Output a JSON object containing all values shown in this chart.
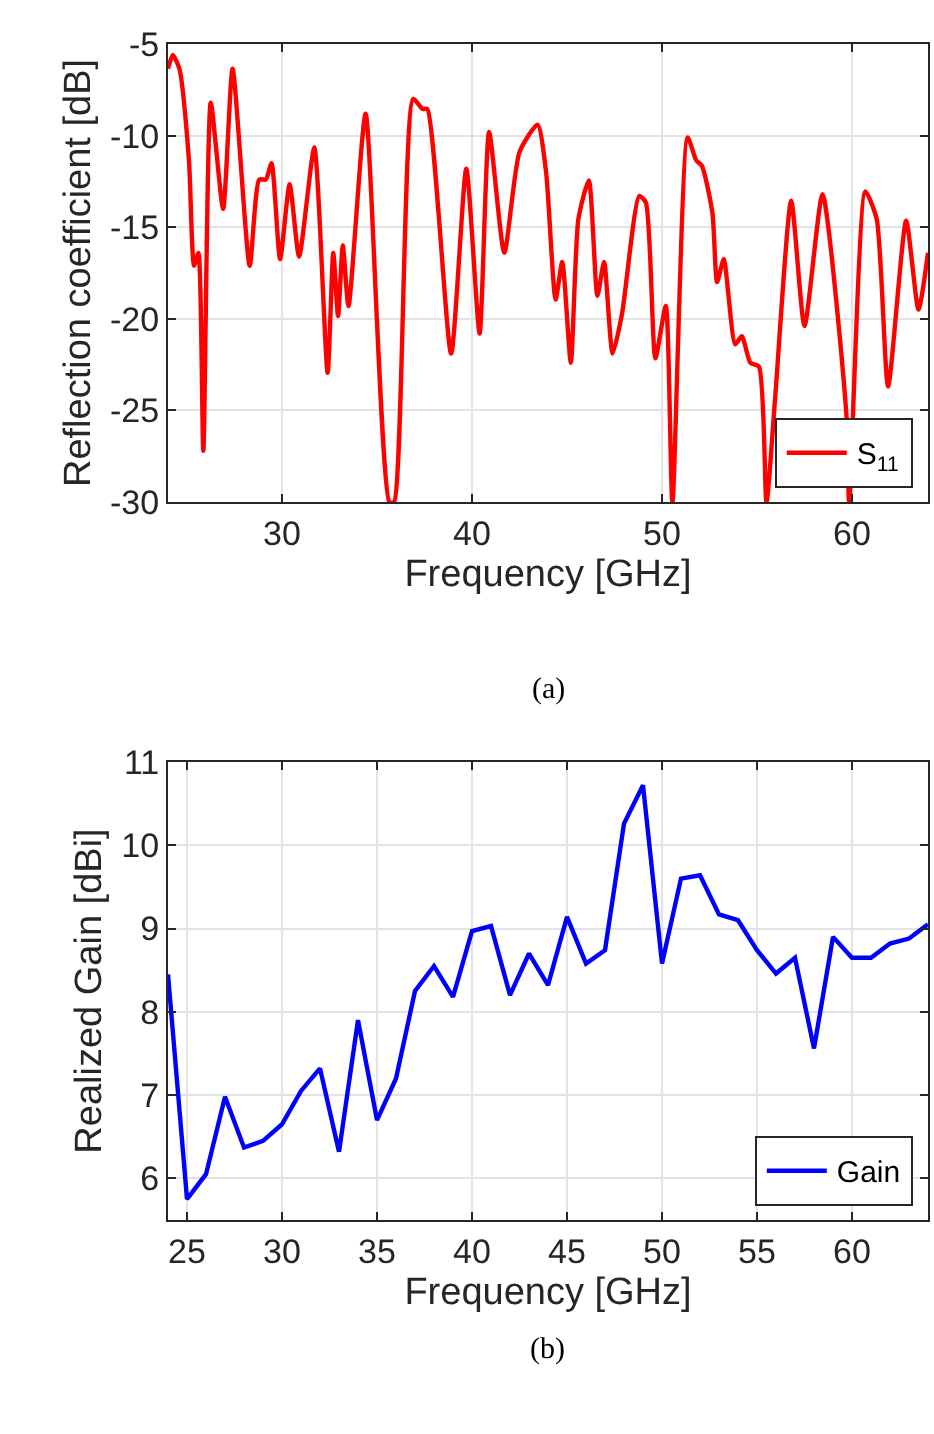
{
  "chart_data": [
    {
      "type": "line",
      "xlabel": "Frequency [GHz]",
      "ylabel": "Reflection coefficient [dB]",
      "annotations": [
        "(a)"
      ],
      "grid": true,
      "legend": "bottom right",
      "marker": "none",
      "line_style": "solid",
      "xlim": [
        24,
        64
      ],
      "xticks": [
        30,
        40,
        50,
        60
      ],
      "ylim": [
        -30,
        -5
      ],
      "yticks": [
        -30,
        -25,
        -20,
        -15,
        -10,
        -5
      ],
      "series": [
        {
          "name": "S$_{11}$",
          "color": "#ff0000",
          "x": [
            24,
            24.25,
            24.6,
            25.1,
            25.37,
            25.6,
            25.86,
            26.25,
            26.9,
            27.4,
            28.3,
            28.8,
            29.15,
            29.45,
            29.9,
            30.4,
            30.9,
            31.7,
            32.4,
            32.7,
            32.95,
            33.2,
            33.5,
            34.4,
            35.65,
            35.9,
            36.9,
            37.4,
            37.65,
            38.9,
            39.7,
            40.4,
            40.9,
            41.7,
            42.5,
            43.45,
            43.9,
            44.4,
            44.75,
            45.2,
            45.6,
            46.15,
            46.6,
            46.95,
            47.4,
            47.9,
            48.8,
            49.15,
            49.65,
            50.2,
            50.55,
            51.35,
            51.8,
            52.1,
            52.65,
            52.9,
            53.25,
            53.85,
            54.2,
            54.65,
            55.1,
            55.5,
            55.95,
            56.8,
            57.5,
            58.45,
            59.7,
            59.85,
            60.7,
            61.3,
            61.9,
            62.85,
            63.5,
            64.0
          ],
          "values": [
            -6.35,
            -5.6,
            -6.35,
            -11.3,
            -17.1,
            -16.4,
            -27.2,
            -8.2,
            -14.0,
            -6.35,
            -17.1,
            -12.4,
            -12.4,
            -11.5,
            -16.75,
            -12.65,
            -16.6,
            -10.65,
            -22.95,
            -16.4,
            -19.85,
            -16.0,
            -19.3,
            -8.8,
            -30,
            -30,
            -8.0,
            -8.55,
            -8.55,
            -21.9,
            -11.8,
            -20.8,
            -9.8,
            -16.4,
            -10.9,
            -9.4,
            -12.0,
            -18.95,
            -16.9,
            -22.4,
            -14.55,
            -12.45,
            -18.75,
            -16.9,
            -21.9,
            -19.7,
            -13.3,
            -13.65,
            -22.15,
            -19.3,
            -30,
            -10.1,
            -11.35,
            -11.65,
            -14.2,
            -18.0,
            -16.75,
            -21.4,
            -20.95,
            -22.4,
            -22.6,
            -30,
            -24.4,
            -13.55,
            -20.4,
            -13.2,
            -25.15,
            -30,
            -13.05,
            -14.55,
            -23.7,
            -14.65,
            -19.5,
            -16.4
          ]
        }
      ]
    },
    {
      "type": "line",
      "xlabel": "Frequency [GHz]",
      "ylabel": "Realized Gain [dBi]",
      "annotations": [
        "(b)"
      ],
      "grid": true,
      "legend": "bottom right",
      "marker": "none",
      "line_style": "solid",
      "xlim": [
        24,
        64
      ],
      "xticks": [
        25,
        30,
        35,
        40,
        45,
        50,
        55,
        60
      ],
      "ylim": [
        5.5,
        11
      ],
      "yticks": [
        6,
        7,
        8,
        9,
        10,
        11
      ],
      "series": [
        {
          "name": "Gain",
          "color": "#0000ff",
          "x": [
            24,
            25,
            26,
            27,
            28,
            29,
            30,
            31,
            32,
            33,
            34,
            35,
            36,
            37,
            38,
            39,
            40,
            41,
            42,
            43,
            44,
            45,
            46,
            47,
            48,
            49,
            50,
            51,
            52,
            53,
            54,
            55,
            56,
            57,
            58,
            59,
            60,
            61,
            62,
            63,
            64
          ],
          "values": [
            8.45,
            5.75,
            6.05,
            6.98,
            6.37,
            6.45,
            6.65,
            7.05,
            7.32,
            6.32,
            7.9,
            6.7,
            7.2,
            8.25,
            8.55,
            8.18,
            8.97,
            9.03,
            8.2,
            8.7,
            8.32,
            9.14,
            8.58,
            8.74,
            10.26,
            10.72,
            8.58,
            9.6,
            9.64,
            9.17,
            9.1,
            8.74,
            8.46,
            8.65,
            7.56,
            8.9,
            8.65,
            8.65,
            8.82,
            8.88,
            9.05
          ]
        }
      ]
    }
  ]
}
